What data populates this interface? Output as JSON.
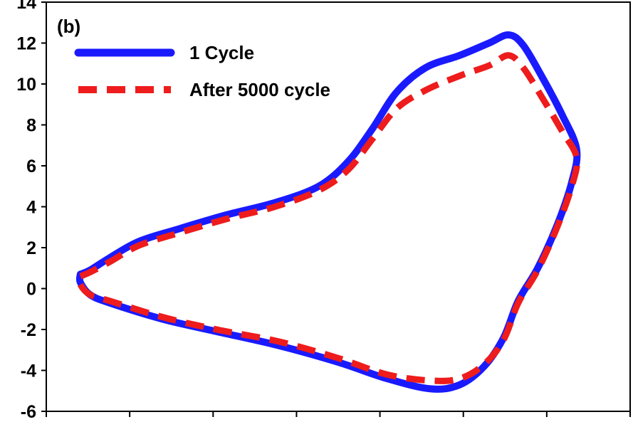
{
  "chart_data": {
    "type": "line",
    "panel_label": "(b)",
    "title": "",
    "xlabel": "",
    "ylabel": "",
    "ylim": [
      -6,
      14
    ],
    "yticks": [
      "-6",
      "-4",
      "-2",
      "0",
      "2",
      "4",
      "6",
      "8",
      "10",
      "12",
      "14"
    ],
    "xtick_count": 7,
    "grid": false,
    "legend_position": "top-left",
    "series": [
      {
        "name": "1 Cycle",
        "color": "#1a1aff",
        "style": "solid",
        "points": [
          [
            0.07,
            0.7
          ],
          [
            0.09,
            0.9
          ],
          [
            0.13,
            1.5
          ],
          [
            0.19,
            2.3
          ],
          [
            0.27,
            2.9
          ],
          [
            0.37,
            3.6
          ],
          [
            0.47,
            4.2
          ],
          [
            0.56,
            5.0
          ],
          [
            0.62,
            6.2
          ],
          [
            0.67,
            7.8
          ],
          [
            0.72,
            9.6
          ],
          [
            0.78,
            10.8
          ],
          [
            0.85,
            11.4
          ],
          [
            0.91,
            12.0
          ],
          [
            0.95,
            12.4
          ],
          [
            0.98,
            11.9
          ],
          [
            1.02,
            10.3
          ],
          [
            1.06,
            8.5
          ],
          [
            1.09,
            6.8
          ],
          [
            1.08,
            5.2
          ],
          [
            1.05,
            3.1
          ],
          [
            1.01,
            1.0
          ],
          [
            0.97,
            -0.6
          ],
          [
            0.94,
            -2.4
          ],
          [
            0.9,
            -3.8
          ],
          [
            0.85,
            -4.7
          ],
          [
            0.79,
            -4.9
          ],
          [
            0.7,
            -4.4
          ],
          [
            0.6,
            -3.6
          ],
          [
            0.48,
            -2.8
          ],
          [
            0.35,
            -2.1
          ],
          [
            0.24,
            -1.5
          ],
          [
            0.13,
            -0.7
          ],
          [
            0.09,
            -0.3
          ],
          [
            0.07,
            0.3
          ],
          [
            0.07,
            0.7
          ]
        ]
      },
      {
        "name": "After 5000 cycle",
        "color": "#ee1c1c",
        "style": "dashed",
        "points": [
          [
            0.07,
            0.6
          ],
          [
            0.09,
            0.8
          ],
          [
            0.13,
            1.3
          ],
          [
            0.19,
            2.1
          ],
          [
            0.27,
            2.7
          ],
          [
            0.37,
            3.4
          ],
          [
            0.47,
            4.0
          ],
          [
            0.56,
            4.8
          ],
          [
            0.62,
            5.8
          ],
          [
            0.67,
            7.3
          ],
          [
            0.72,
            8.8
          ],
          [
            0.78,
            9.7
          ],
          [
            0.85,
            10.4
          ],
          [
            0.91,
            10.9
          ],
          [
            0.95,
            11.4
          ],
          [
            0.98,
            10.8
          ],
          [
            1.02,
            9.3
          ],
          [
            1.06,
            7.7
          ],
          [
            1.09,
            6.4
          ],
          [
            1.08,
            5.0
          ],
          [
            1.05,
            3.0
          ],
          [
            1.01,
            0.9
          ],
          [
            0.97,
            -0.7
          ],
          [
            0.94,
            -2.5
          ],
          [
            0.9,
            -3.7
          ],
          [
            0.85,
            -4.4
          ],
          [
            0.79,
            -4.5
          ],
          [
            0.7,
            -4.2
          ],
          [
            0.6,
            -3.4
          ],
          [
            0.48,
            -2.6
          ],
          [
            0.35,
            -2.0
          ],
          [
            0.24,
            -1.4
          ],
          [
            0.13,
            -0.6
          ],
          [
            0.09,
            -0.3
          ],
          [
            0.07,
            0.2
          ],
          [
            0.07,
            0.6
          ]
        ]
      }
    ]
  }
}
